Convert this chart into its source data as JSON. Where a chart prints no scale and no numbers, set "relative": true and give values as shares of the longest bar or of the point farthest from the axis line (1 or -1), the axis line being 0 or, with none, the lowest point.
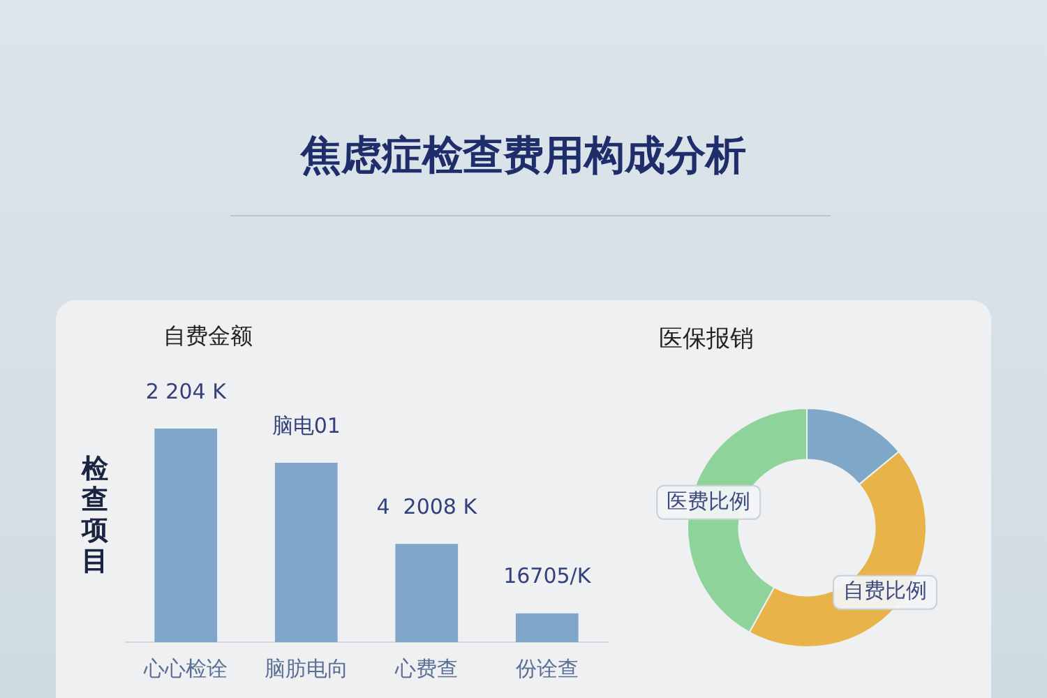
{
  "chart_data": [
    {
      "type": "bar",
      "title": "焦虑症检查费用构成分析",
      "subtitle": "自费金额",
      "ylabel": "检查项目",
      "categories": [
        "心心检诠",
        "脑肪电向",
        "心费查",
        "份诠查"
      ],
      "values": [
        1,
        0.84,
        0.46,
        0.135
      ],
      "annotations": [
        "2 204 K",
        "脑电01",
        "4  2008 K",
        "16705/K"
      ],
      "color": "#7fa6c9",
      "relative": true,
      "grid": false,
      "legend": false
    },
    {
      "type": "donut",
      "title": "医保报销",
      "categories": [
        null,
        "自费比例",
        "医费比例"
      ],
      "values": [
        14,
        44,
        42
      ],
      "colors": [
        "#7fa8c8",
        "#e8b44a",
        "#8ed49a"
      ],
      "legend": false
    }
  ]
}
